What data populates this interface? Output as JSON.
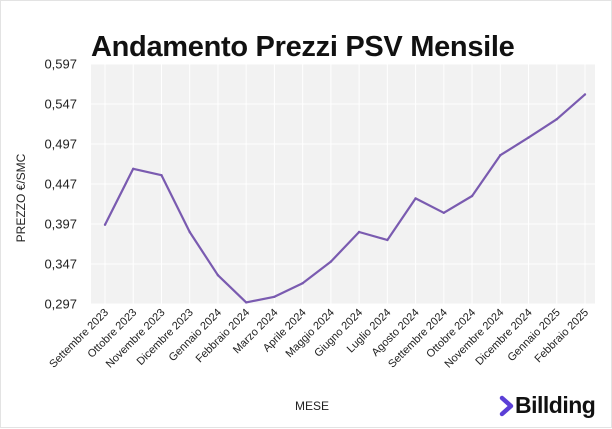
{
  "brand": {
    "name": "Billding",
    "accent": "#5b3fd6",
    "icon": "chevron-right-icon"
  },
  "colors": {
    "line": "#7a5bb0",
    "plot_bg": "#f2f2f2",
    "grid": "#ffffff"
  },
  "chart_data": {
    "type": "line",
    "title": "Andamento Prezzi PSV Mensile",
    "xlabel": "MESE",
    "ylabel": "PREZZO €/SMC",
    "ylim": [
      0.297,
      0.597
    ],
    "yticks": [
      "0,597",
      "0,547",
      "0,497",
      "0,447",
      "0,397",
      "0,347",
      "0,297"
    ],
    "ytick_values": [
      0.597,
      0.547,
      0.497,
      0.447,
      0.397,
      0.347,
      0.297
    ],
    "grid": true,
    "categories": [
      "Settembre 2023",
      "Ottobre 2023",
      "Novembre 2023",
      "Dicembre 2023",
      "Gennaio 2024",
      "Febbraio 2024",
      "Marzo 2024",
      "Aprile 2024",
      "Maggio 2024",
      "Giugno 2024",
      "Luglio 2024",
      "Agosto 2024",
      "Settembre 2024",
      "Ottobre 2024",
      "Novembre 2024",
      "Dicembre 2024",
      "Gennaio 2025",
      "Febbraio 2025"
    ],
    "series": [
      {
        "values": [
          0.396,
          0.466,
          0.458,
          0.387,
          0.333,
          0.299,
          0.306,
          0.323,
          0.35,
          0.387,
          0.377,
          0.429,
          0.411,
          0.432,
          0.483,
          0.505,
          0.528,
          0.559
        ]
      }
    ]
  }
}
